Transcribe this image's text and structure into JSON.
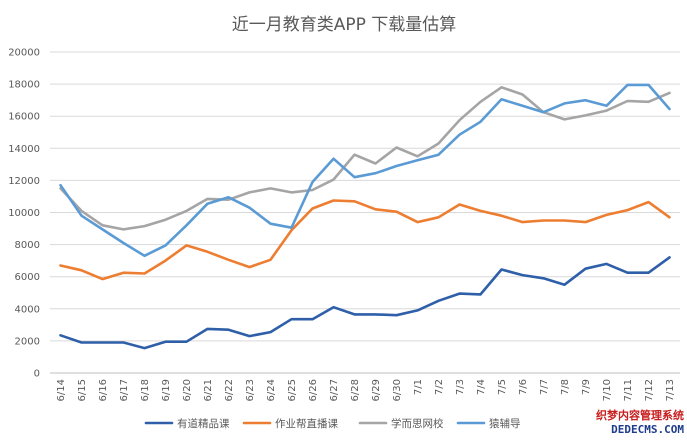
{
  "chart_data": {
    "type": "line",
    "title": "近一月教育类APP 下载量估算",
    "xlabel": "",
    "ylabel": "",
    "ylim": [
      0,
      20000
    ],
    "yticks": [
      0,
      2000,
      4000,
      6000,
      8000,
      10000,
      12000,
      14000,
      16000,
      18000,
      20000
    ],
    "grid": true,
    "legend_position": "bottom",
    "categories": [
      "6/14",
      "6/15",
      "6/16",
      "6/17",
      "6/18",
      "6/19",
      "6/20",
      "6/21",
      "6/22",
      "6/23",
      "6/24",
      "6/25",
      "6/26",
      "6/27",
      "6/28",
      "6/29",
      "6/30",
      "7/1",
      "7/2",
      "7/3",
      "7/4",
      "7/5",
      "7/6",
      "7/7",
      "7/8",
      "7/9",
      "7/10",
      "7/11",
      "7/12",
      "7/13"
    ],
    "series": [
      {
        "name": "有道精品课",
        "color": "#2e5fa8",
        "values": [
          2350,
          1900,
          1900,
          1900,
          1550,
          1950,
          1950,
          2750,
          2700,
          2300,
          2550,
          3350,
          3350,
          4100,
          3650,
          3650,
          3600,
          3900,
          4500,
          4950,
          4900,
          6450,
          6100,
          5900,
          5500,
          6500,
          6800,
          6250,
          6250,
          7200
        ]
      },
      {
        "name": "作业帮直播课",
        "color": "#ed7d31",
        "values": [
          6700,
          6400,
          5850,
          6250,
          6200,
          7000,
          7950,
          7550,
          7050,
          6600,
          7050,
          8900,
          10250,
          10750,
          10700,
          10200,
          10050,
          9400,
          9700,
          10500,
          10100,
          9800,
          9400,
          9500,
          9500,
          9400,
          9850,
          10150,
          10650,
          9700
        ]
      },
      {
        "name": "学而思网校",
        "color": "#a5a5a5",
        "values": [
          11500,
          10100,
          9200,
          8950,
          9150,
          9550,
          10100,
          10850,
          10800,
          11250,
          11500,
          11250,
          11400,
          12050,
          13600,
          13050,
          14050,
          13500,
          14300,
          15750,
          16900,
          17800,
          17350,
          16250,
          15800,
          16050,
          16350,
          16950,
          16900,
          17450
        ]
      },
      {
        "name": "猿辅导",
        "color": "#5b9bd5",
        "values": [
          11700,
          9800,
          8950,
          8100,
          7300,
          7950,
          9200,
          10550,
          10950,
          10300,
          9300,
          9050,
          11900,
          13350,
          12200,
          12450,
          12900,
          13250,
          13600,
          14850,
          15650,
          17050,
          16650,
          16250,
          16800,
          17000,
          16650,
          17950,
          17950,
          16450
        ]
      }
    ]
  },
  "watermark": {
    "line1": "织梦内容管理系统",
    "line2": "DEDECMS.COM"
  }
}
